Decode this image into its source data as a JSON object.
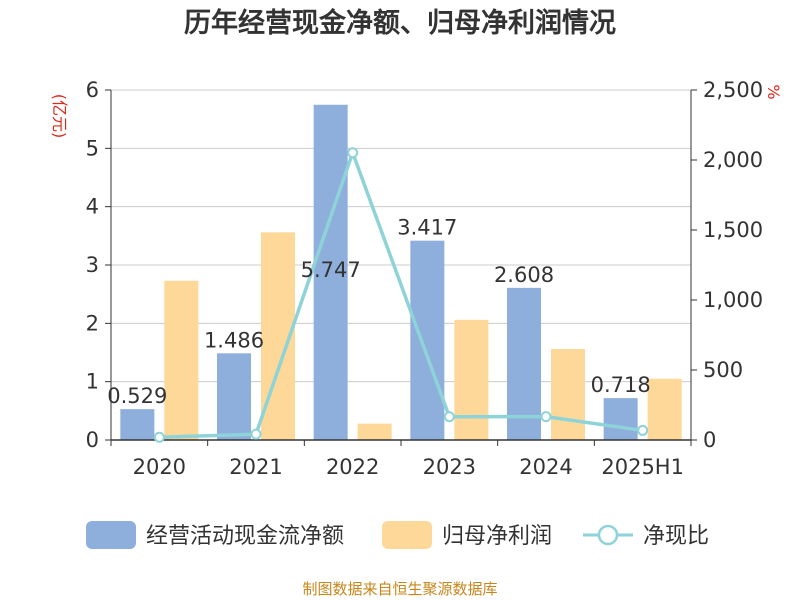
{
  "title": "历年经营现金净额、归母净利润情况",
  "source": "制图数据来自恒生聚源数据库",
  "colors": {
    "cash_flow": "#8eaedc",
    "net_profit": "#fdd898",
    "ratio": "#8ed3d8",
    "axis_text": "#333333",
    "unit_text": "#e0281a",
    "grid": "#cccccc",
    "source_text": "#c8861a"
  },
  "chart_data": {
    "type": "bar",
    "title": "历年经营现金净额、归母净利润情况",
    "categories": [
      "2020",
      "2021",
      "2022",
      "2023",
      "2024",
      "2025H1"
    ],
    "y_left": {
      "unit": "(亿元)",
      "range": [
        0,
        6
      ],
      "ticks": [
        0,
        1,
        2,
        3,
        4,
        5,
        6
      ],
      "tick_labels": [
        "0",
        "1",
        "2",
        "3",
        "4",
        "5",
        "6"
      ]
    },
    "y_right": {
      "unit": "%",
      "range": [
        0,
        2500
      ],
      "ticks": [
        0,
        500,
        1000,
        1500,
        2000,
        2500
      ],
      "tick_labels": [
        "0",
        "500",
        "1,000",
        "1,500",
        "2,000",
        "2,500"
      ]
    },
    "grid": true,
    "legend_position": "bottom",
    "series": [
      {
        "name": "经营活动现金流净额",
        "type": "bar",
        "axis": "left",
        "values": [
          0.529,
          1.486,
          5.747,
          3.417,
          2.608,
          0.718
        ],
        "data_labels": [
          "0.529",
          "1.486",
          "5.747",
          "3.417",
          "2.608",
          "0.718"
        ]
      },
      {
        "name": "归母净利润",
        "type": "bar",
        "axis": "left",
        "values": [
          2.73,
          3.56,
          0.28,
          2.06,
          1.56,
          1.05
        ]
      },
      {
        "name": "净现比",
        "type": "line",
        "axis": "right",
        "values": [
          19.4,
          41.7,
          2052,
          165.9,
          167.2,
          68.4
        ]
      }
    ]
  }
}
